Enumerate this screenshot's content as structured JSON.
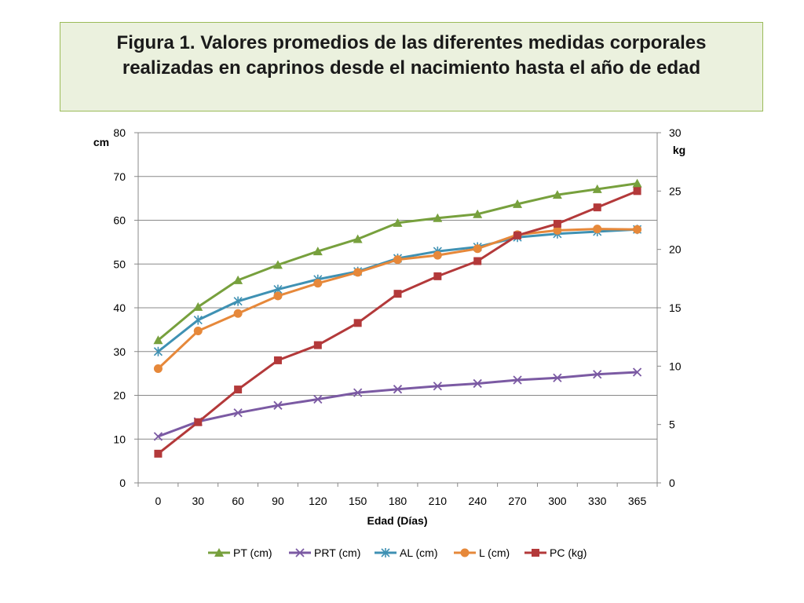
{
  "title_lines": [
    "Figura 1. Valores promedios de las diferentes medidas corporales",
    "realizadas en caprinos desde el nacimiento hasta el año de edad"
  ],
  "chart_data": {
    "type": "line",
    "title": "Figura 1. Valores promedios de las diferentes medidas corporales realizadas en caprinos desde el nacimiento hasta el año de edad",
    "xlabel": "Edad (Días)",
    "ylabel": "cm",
    "y2label": "kg",
    "categories": [
      "0",
      "30",
      "60",
      "90",
      "120",
      "150",
      "180",
      "210",
      "240",
      "270",
      "300",
      "330",
      "365"
    ],
    "ylim": [
      0,
      80
    ],
    "y2lim": [
      0,
      30
    ],
    "yticks": [
      0,
      10,
      20,
      30,
      40,
      50,
      60,
      70,
      80
    ],
    "y2ticks": [
      0,
      5,
      10,
      15,
      20,
      25,
      30
    ],
    "grid": true,
    "legend_position": "bottom",
    "series": [
      {
        "name": "PT (cm)",
        "axis": "left",
        "color": "#77a03d",
        "marker": "triangle",
        "values": [
          32.6,
          40.2,
          46.3,
          49.8,
          52.9,
          55.7,
          59.4,
          60.5,
          61.4,
          63.7,
          65.8,
          67.1,
          68.4
        ]
      },
      {
        "name": "PRT (cm)",
        "axis": "left",
        "color": "#7b5aa3",
        "marker": "x",
        "values": [
          10.6,
          14.0,
          16.0,
          17.7,
          19.1,
          20.6,
          21.4,
          22.1,
          22.7,
          23.5,
          24.0,
          24.8,
          25.3
        ]
      },
      {
        "name": "AL (cm)",
        "axis": "left",
        "color": "#3f91b3",
        "marker": "star",
        "values": [
          30.0,
          37.2,
          41.5,
          44.2,
          46.5,
          48.3,
          51.3,
          52.9,
          53.9,
          56.1,
          56.9,
          57.4,
          57.9
        ]
      },
      {
        "name": "L (cm)",
        "axis": "left",
        "color": "#e6883a",
        "marker": "circle",
        "values": [
          26.1,
          34.7,
          38.7,
          42.7,
          45.6,
          48.1,
          51.0,
          52.0,
          53.5,
          56.7,
          57.7,
          58.0,
          57.9
        ]
      },
      {
        "name": "PC (kg)",
        "axis": "right",
        "color": "#b3393a",
        "marker": "square",
        "values": [
          2.5,
          5.2,
          8.0,
          10.5,
          11.8,
          13.7,
          16.2,
          17.7,
          19.0,
          21.2,
          22.2,
          23.6,
          25.0
        ]
      }
    ]
  }
}
